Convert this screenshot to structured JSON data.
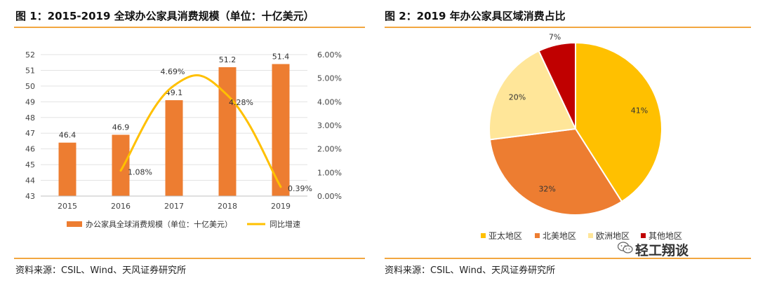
{
  "figures": {
    "left": {
      "title": "图 1：2015-2019 全球办公家具消费规模（单位：十亿美元）",
      "source": "资料来源：CSIL、Wind、天风证券研究所"
    },
    "right": {
      "title": "图 2：2019 年办公家具区域消费占比",
      "source": "资料来源：CSIL、Wind、天风证券研究所"
    }
  },
  "watermark": {
    "text": "轻工翔谈",
    "icon": "wechat-icon"
  },
  "colors": {
    "bar": "#ed7d31",
    "line": "#ffc000",
    "rule": "#f2a640"
  },
  "chart_data": [
    {
      "type": "bar",
      "title": "",
      "categories": [
        "2015",
        "2016",
        "2017",
        "2018",
        "2019"
      ],
      "series": [
        {
          "name": "办公家具全球消费规模（单位：十亿美元）",
          "type": "bar",
          "axis": "left",
          "values": [
            46.4,
            46.9,
            49.1,
            51.2,
            51.4
          ],
          "color": "#ed7d31"
        },
        {
          "name": "同比增速",
          "type": "line",
          "axis": "right",
          "values": [
            null,
            1.08,
            4.69,
            4.28,
            0.39
          ],
          "unit": "%",
          "color": "#ffc000"
        }
      ],
      "y_left": {
        "range": [
          43,
          52
        ],
        "ticks": [
          "43",
          "44",
          "45",
          "46",
          "47",
          "48",
          "49",
          "50",
          "51",
          "52"
        ]
      },
      "y_right": {
        "range": [
          0,
          6
        ],
        "ticks": [
          "0.00%",
          "1.00%",
          "2.00%",
          "3.00%",
          "4.00%",
          "5.00%",
          "6.00%"
        ]
      },
      "bar_labels": [
        "46.4",
        "46.9",
        "49.1",
        "51.2",
        "51.4"
      ],
      "line_labels": [
        "",
        "1.08%",
        "4.69%",
        "4.28%",
        "0.39%"
      ],
      "grid": true,
      "legend_position": "bottom"
    },
    {
      "type": "pie",
      "title": "",
      "slices": [
        {
          "name": "亚太地区",
          "value": 41,
          "label": "41%",
          "color": "#ffc000"
        },
        {
          "name": "北美地区",
          "value": 32,
          "label": "32%",
          "color": "#ed7d31"
        },
        {
          "name": "欧洲地区",
          "value": 20,
          "label": "20%",
          "color": "#ffe699"
        },
        {
          "name": "其他地区",
          "value": 7,
          "label": "7%",
          "color": "#c00000"
        }
      ],
      "legend_position": "bottom"
    }
  ]
}
